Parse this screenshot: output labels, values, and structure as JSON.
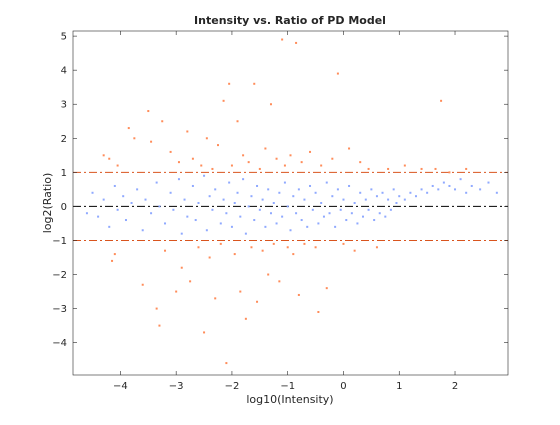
{
  "chart_data": {
    "type": "scatter",
    "title": "Intensity vs. Ratio of PD Model",
    "xlabel": "log10(Intensity)",
    "ylabel": "log2(Ratio)",
    "xlim": [
      -4.85,
      2.95
    ],
    "ylim": [
      -4.95,
      5.15
    ],
    "xticks": [
      -4,
      -3,
      -2,
      -1,
      0,
      1,
      2
    ],
    "yticks": [
      -4,
      -3,
      -2,
      -1,
      0,
      1,
      2,
      3,
      4,
      5
    ],
    "grid": false,
    "reference_lines": [
      {
        "y": 0,
        "style": "dash-dot",
        "color": "#000000"
      },
      {
        "y": 1,
        "style": "dash-dot",
        "color": "#d9541e"
      },
      {
        "y": -1,
        "style": "dash-dot",
        "color": "#d9541e"
      }
    ],
    "series": [
      {
        "color": "#8fa9ff",
        "points": [
          [
            -4.6,
            -0.2
          ],
          [
            -4.5,
            0.4
          ],
          [
            -4.4,
            -0.3
          ],
          [
            -4.3,
            0.2
          ],
          [
            -4.2,
            -0.6
          ],
          [
            -4.1,
            0.6
          ],
          [
            -4.05,
            -0.1
          ],
          [
            -3.95,
            0.3
          ],
          [
            -3.9,
            -0.4
          ],
          [
            -3.8,
            0.1
          ],
          [
            -3.7,
            0.5
          ],
          [
            -3.6,
            -0.7
          ],
          [
            -3.55,
            0.2
          ],
          [
            -3.45,
            -0.2
          ],
          [
            -3.35,
            0.7
          ],
          [
            -3.3,
            0.0
          ],
          [
            -3.2,
            -0.5
          ],
          [
            -3.1,
            0.4
          ],
          [
            -3.05,
            -0.1
          ],
          [
            -2.95,
            0.8
          ],
          [
            -2.9,
            -0.8
          ],
          [
            -2.85,
            0.2
          ],
          [
            -2.8,
            -0.3
          ],
          [
            -2.7,
            0.6
          ],
          [
            -2.65,
            -0.4
          ],
          [
            -2.6,
            0.1
          ],
          [
            -2.5,
            0.9
          ],
          [
            -2.45,
            -0.7
          ],
          [
            -2.4,
            0.3
          ],
          [
            -2.35,
            -0.1
          ],
          [
            -2.3,
            0.5
          ],
          [
            -2.2,
            -0.5
          ],
          [
            -2.15,
            0.2
          ],
          [
            -2.1,
            -0.2
          ],
          [
            -2.05,
            0.7
          ],
          [
            -2.0,
            -0.6
          ],
          [
            -1.95,
            0.1
          ],
          [
            -1.9,
            0.4
          ],
          [
            -1.85,
            -0.3
          ],
          [
            -1.8,
            0.8
          ],
          [
            -1.75,
            -0.8
          ],
          [
            -1.7,
            0.0
          ],
          [
            -1.65,
            0.3
          ],
          [
            -1.6,
            -0.4
          ],
          [
            -1.55,
            0.6
          ],
          [
            -1.5,
            -0.1
          ],
          [
            -1.45,
            0.2
          ],
          [
            -1.4,
            -0.6
          ],
          [
            -1.35,
            0.5
          ],
          [
            -1.3,
            -0.2
          ],
          [
            -1.25,
            0.1
          ],
          [
            -1.2,
            -0.5
          ],
          [
            -1.15,
            0.4
          ],
          [
            -1.1,
            -0.3
          ],
          [
            -1.05,
            0.7
          ],
          [
            -1.0,
            0.0
          ],
          [
            -0.95,
            -0.7
          ],
          [
            -0.9,
            0.3
          ],
          [
            -0.85,
            -0.2
          ],
          [
            -0.8,
            0.5
          ],
          [
            -0.75,
            -0.4
          ],
          [
            -0.7,
            0.2
          ],
          [
            -0.65,
            -0.6
          ],
          [
            -0.6,
            0.6
          ],
          [
            -0.55,
            -0.1
          ],
          [
            -0.5,
            0.4
          ],
          [
            -0.45,
            -0.5
          ],
          [
            -0.4,
            0.1
          ],
          [
            -0.35,
            -0.3
          ],
          [
            -0.3,
            0.7
          ],
          [
            -0.25,
            -0.2
          ],
          [
            -0.2,
            0.3
          ],
          [
            -0.15,
            -0.6
          ],
          [
            -0.1,
            0.5
          ],
          [
            -0.05,
            -0.1
          ],
          [
            0.0,
            0.2
          ],
          [
            0.05,
            -0.4
          ],
          [
            0.1,
            0.6
          ],
          [
            0.15,
            -0.2
          ],
          [
            0.2,
            0.1
          ],
          [
            0.25,
            -0.5
          ],
          [
            0.3,
            0.4
          ],
          [
            0.35,
            -0.3
          ],
          [
            0.4,
            0.2
          ],
          [
            0.45,
            -0.1
          ],
          [
            0.5,
            0.5
          ],
          [
            0.55,
            -0.4
          ],
          [
            0.6,
            0.3
          ],
          [
            0.65,
            -0.2
          ],
          [
            0.7,
            0.4
          ],
          [
            0.75,
            -0.3
          ],
          [
            0.8,
            0.2
          ],
          [
            0.85,
            -0.1
          ],
          [
            0.9,
            0.5
          ],
          [
            0.95,
            0.1
          ],
          [
            1.0,
            0.3
          ],
          [
            1.1,
            0.2
          ],
          [
            1.2,
            0.4
          ],
          [
            1.3,
            0.3
          ],
          [
            1.4,
            0.5
          ],
          [
            1.5,
            0.4
          ],
          [
            1.6,
            0.6
          ],
          [
            1.7,
            0.5
          ],
          [
            1.8,
            0.7
          ],
          [
            1.9,
            0.6
          ],
          [
            2.0,
            0.5
          ],
          [
            2.1,
            0.8
          ],
          [
            2.2,
            0.4
          ],
          [
            2.3,
            0.6
          ],
          [
            2.45,
            0.5
          ],
          [
            2.6,
            0.7
          ],
          [
            2.75,
            0.4
          ]
        ]
      },
      {
        "color": "#ff8c59",
        "points": [
          [
            -4.3,
            1.5
          ],
          [
            -4.2,
            1.4
          ],
          [
            -4.1,
            -1.4
          ],
          [
            -4.15,
            -1.6
          ],
          [
            -4.05,
            1.2
          ],
          [
            -3.85,
            2.3
          ],
          [
            -3.75,
            2.0
          ],
          [
            -3.6,
            -2.3
          ],
          [
            -3.5,
            2.8
          ],
          [
            -3.45,
            1.9
          ],
          [
            -3.35,
            -3.0
          ],
          [
            -3.3,
            -3.5
          ],
          [
            -3.25,
            2.5
          ],
          [
            -3.2,
            -1.3
          ],
          [
            -3.1,
            1.6
          ],
          [
            -3.0,
            -2.5
          ],
          [
            -2.95,
            1.3
          ],
          [
            -2.9,
            -1.8
          ],
          [
            -2.8,
            2.2
          ],
          [
            -2.75,
            -2.2
          ],
          [
            -2.7,
            1.4
          ],
          [
            -2.6,
            -1.2
          ],
          [
            -2.55,
            1.2
          ],
          [
            -2.5,
            -3.7
          ],
          [
            -2.45,
            2.0
          ],
          [
            -2.4,
            -1.5
          ],
          [
            -2.35,
            1.1
          ],
          [
            -2.3,
            -2.7
          ],
          [
            -2.25,
            1.8
          ],
          [
            -2.2,
            -1.1
          ],
          [
            -2.15,
            3.1
          ],
          [
            -2.1,
            -4.6
          ],
          [
            -2.05,
            3.6
          ],
          [
            -2.0,
            1.2
          ],
          [
            -1.95,
            -1.4
          ],
          [
            -1.9,
            2.5
          ],
          [
            -1.85,
            -2.5
          ],
          [
            -1.8,
            1.5
          ],
          [
            -1.75,
            -3.3
          ],
          [
            -1.7,
            1.3
          ],
          [
            -1.65,
            -1.2
          ],
          [
            -1.6,
            3.6
          ],
          [
            -1.55,
            -2.8
          ],
          [
            -1.5,
            1.1
          ],
          [
            -1.45,
            -1.3
          ],
          [
            -1.4,
            1.7
          ],
          [
            -1.35,
            -2.0
          ],
          [
            -1.3,
            3.0
          ],
          [
            -1.25,
            -1.1
          ],
          [
            -1.2,
            1.4
          ],
          [
            -1.15,
            -2.2
          ],
          [
            -1.1,
            4.9
          ],
          [
            -1.05,
            1.2
          ],
          [
            -1.0,
            -1.2
          ],
          [
            -0.95,
            1.5
          ],
          [
            -0.9,
            -1.4
          ],
          [
            -0.85,
            4.8
          ],
          [
            -0.8,
            -2.6
          ],
          [
            -0.75,
            1.3
          ],
          [
            -0.7,
            -1.1
          ],
          [
            -0.6,
            1.6
          ],
          [
            -0.5,
            -1.2
          ],
          [
            -0.45,
            -3.1
          ],
          [
            -0.4,
            1.2
          ],
          [
            -0.3,
            -2.4
          ],
          [
            -0.2,
            1.4
          ],
          [
            -0.1,
            3.9
          ],
          [
            0.0,
            -1.1
          ],
          [
            0.1,
            1.7
          ],
          [
            0.2,
            -1.3
          ],
          [
            0.3,
            1.3
          ],
          [
            0.45,
            1.1
          ],
          [
            0.6,
            -1.2
          ],
          [
            0.8,
            1.1
          ],
          [
            1.1,
            1.2
          ],
          [
            1.4,
            1.1
          ],
          [
            1.65,
            1.1
          ],
          [
            1.75,
            3.1
          ],
          [
            1.9,
            1.0
          ],
          [
            2.2,
            1.1
          ]
        ]
      }
    ]
  }
}
